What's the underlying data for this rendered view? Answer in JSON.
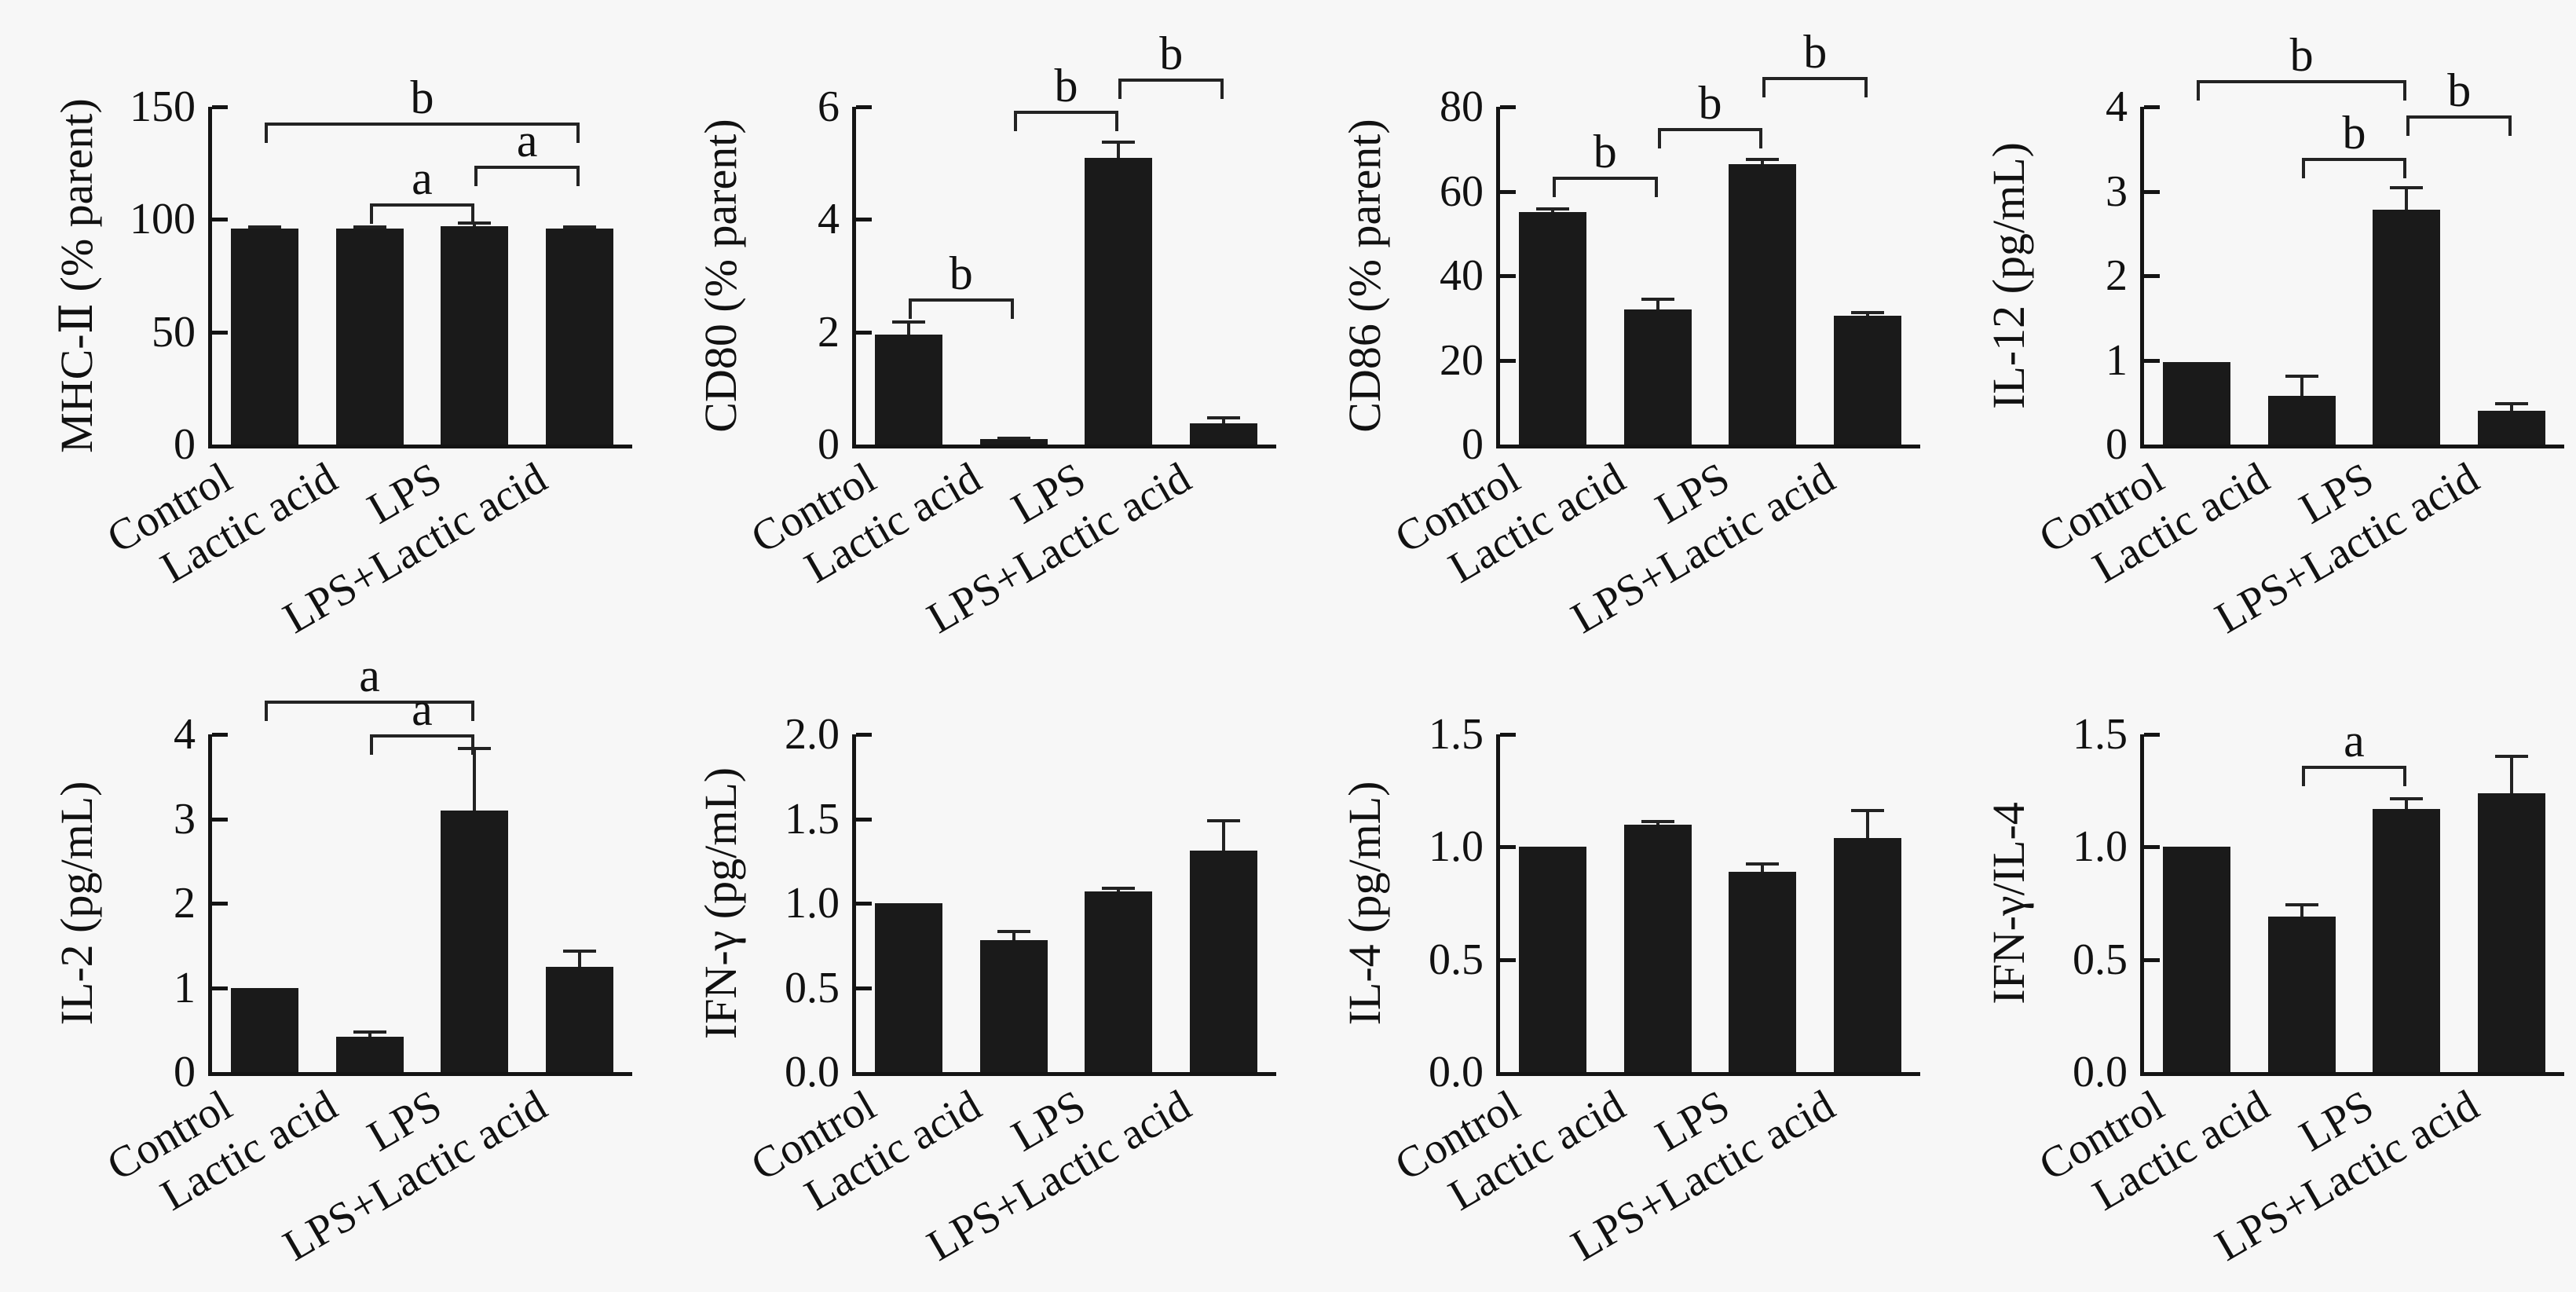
{
  "figure": {
    "background": "#f7f7f7",
    "bar_color": "#1a1a1a",
    "axis_color": "#141414",
    "categories": [
      "Control",
      "Lactic acid",
      "LPS",
      "LPS+Lactic acid"
    ]
  },
  "chart_data": [
    {
      "type": "bar",
      "name": "mhc-ii",
      "ylabel": "MHC-Ⅱ (% parent)",
      "categories": [
        "Control",
        "Lactic acid",
        "LPS",
        "LPS+Lactic acid"
      ],
      "values": [
        96,
        96,
        97,
        96
      ],
      "errors": [
        1.2,
        1.2,
        2.2,
        1.2
      ],
      "ylim": [
        0,
        150
      ],
      "yticks": [
        {
          "v": 0,
          "label": "0"
        },
        {
          "v": 50,
          "label": "50"
        },
        {
          "v": 100,
          "label": "100"
        },
        {
          "v": 150,
          "label": "150"
        }
      ],
      "brackets": [
        {
          "label": "b",
          "from": 0,
          "to": 3,
          "y": 143
        },
        {
          "label": "a",
          "from": 2,
          "to": 3,
          "y": 124
        },
        {
          "label": "a",
          "from": 1,
          "to": 2,
          "y": 107
        }
      ]
    },
    {
      "type": "bar",
      "name": "cd80",
      "ylabel": "CD80 (% parent)",
      "categories": [
        "Control",
        "Lactic acid",
        "LPS",
        "LPS+Lactic acid"
      ],
      "values": [
        1.95,
        0.1,
        5.1,
        0.38
      ],
      "errors": [
        0.25,
        0.04,
        0.3,
        0.12
      ],
      "ylim": [
        0,
        6
      ],
      "yticks": [
        {
          "v": 0,
          "label": "0"
        },
        {
          "v": 2,
          "label": "2"
        },
        {
          "v": 4,
          "label": "4"
        },
        {
          "v": 6,
          "label": "6"
        }
      ],
      "brackets": [
        {
          "label": "b",
          "from": 0,
          "to": 1,
          "y": 2.6
        },
        {
          "label": "b",
          "from": 1,
          "to": 2,
          "y": 5.93
        },
        {
          "label": "b",
          "from": 2,
          "to": 3,
          "y": 6.5
        }
      ]
    },
    {
      "type": "bar",
      "name": "cd86",
      "ylabel": "CD86 (% parent)",
      "categories": [
        "Control",
        "Lactic acid",
        "LPS",
        "LPS+Lactic acid"
      ],
      "values": [
        55,
        32,
        66.5,
        30.5
      ],
      "errors": [
        1.2,
        2.8,
        1.5,
        1.2
      ],
      "ylim": [
        0,
        80
      ],
      "yticks": [
        {
          "v": 0,
          "label": "0"
        },
        {
          "v": 20,
          "label": "20"
        },
        {
          "v": 40,
          "label": "40"
        },
        {
          "v": 60,
          "label": "60"
        },
        {
          "v": 80,
          "label": "80"
        }
      ],
      "brackets": [
        {
          "label": "b",
          "from": 0,
          "to": 1,
          "y": 63.5
        },
        {
          "label": "b",
          "from": 1,
          "to": 2,
          "y": 75
        },
        {
          "label": "b",
          "from": 2,
          "to": 3,
          "y": 87
        }
      ]
    },
    {
      "type": "bar",
      "name": "il-12",
      "ylabel": "IL-12 (pg/mL)",
      "categories": [
        "Control",
        "Lactic acid",
        "LPS",
        "LPS+Lactic acid"
      ],
      "values": [
        0.98,
        0.58,
        2.78,
        0.4
      ],
      "errors": [
        0,
        0.25,
        0.28,
        0.1
      ],
      "ylim": [
        0,
        4
      ],
      "yticks": [
        {
          "v": 0,
          "label": "0"
        },
        {
          "v": 1,
          "label": "1"
        },
        {
          "v": 2,
          "label": "2"
        },
        {
          "v": 3,
          "label": "3"
        },
        {
          "v": 4,
          "label": "4"
        }
      ],
      "brackets": [
        {
          "label": "b",
          "from": 0,
          "to": 2,
          "y": 4.32
        },
        {
          "label": "b",
          "from": 2,
          "to": 3,
          "y": 3.9
        },
        {
          "label": "b",
          "from": 1,
          "to": 2,
          "y": 3.4
        }
      ]
    },
    {
      "type": "bar",
      "name": "il-2",
      "ylabel": "IL-2 (pg/mL)",
      "categories": [
        "Control",
        "Lactic acid",
        "LPS",
        "LPS+Lactic acid"
      ],
      "values": [
        1.0,
        0.42,
        3.1,
        1.25
      ],
      "errors": [
        0,
        0.07,
        0.75,
        0.2
      ],
      "ylim": [
        0,
        4
      ],
      "yticks": [
        {
          "v": 0,
          "label": "0"
        },
        {
          "v": 1,
          "label": "1"
        },
        {
          "v": 2,
          "label": "2"
        },
        {
          "v": 3,
          "label": "3"
        },
        {
          "v": 4,
          "label": "4"
        }
      ],
      "brackets": [
        {
          "label": "a",
          "from": 0,
          "to": 2,
          "y": 4.4
        },
        {
          "label": "a",
          "from": 1,
          "to": 2,
          "y": 4.0
        }
      ]
    },
    {
      "type": "bar",
      "name": "ifn-gamma",
      "ylabel": "IFN-γ (pg/mL)",
      "categories": [
        "Control",
        "Lactic acid",
        "LPS",
        "LPS+Lactic acid"
      ],
      "values": [
        1.0,
        0.78,
        1.07,
        1.31
      ],
      "errors": [
        0,
        0.06,
        0.03,
        0.19
      ],
      "ylim": [
        0,
        2
      ],
      "yticks": [
        {
          "v": 0,
          "label": "0.0"
        },
        {
          "v": 0.5,
          "label": "0.5"
        },
        {
          "v": 1,
          "label": "1.0"
        },
        {
          "v": 1.5,
          "label": "1.5"
        },
        {
          "v": 2,
          "label": "2.0"
        }
      ],
      "brackets": []
    },
    {
      "type": "bar",
      "name": "il-4",
      "ylabel": "IL-4 (pg/mL)",
      "categories": [
        "Control",
        "Lactic acid",
        "LPS",
        "LPS+Lactic acid"
      ],
      "values": [
        1.0,
        1.1,
        0.89,
        1.04
      ],
      "errors": [
        0,
        0.02,
        0.04,
        0.13
      ],
      "ylim": [
        0,
        1.5
      ],
      "yticks": [
        {
          "v": 0,
          "label": "0.0"
        },
        {
          "v": 0.5,
          "label": "0.5"
        },
        {
          "v": 1,
          "label": "1.0"
        },
        {
          "v": 1.5,
          "label": "1.5"
        }
      ],
      "brackets": []
    },
    {
      "type": "bar",
      "name": "ifn-gamma-il-4-ratio",
      "ylabel": "IFN-γ/IL-4",
      "categories": [
        "Control",
        "Lactic acid",
        "LPS",
        "LPS+Lactic acid"
      ],
      "values": [
        1.0,
        0.69,
        1.17,
        1.24
      ],
      "errors": [
        0,
        0.06,
        0.05,
        0.17
      ],
      "ylim": [
        0,
        1.5
      ],
      "yticks": [
        {
          "v": 0,
          "label": "0.0"
        },
        {
          "v": 0.5,
          "label": "0.5"
        },
        {
          "v": 1,
          "label": "1.0"
        },
        {
          "v": 1.5,
          "label": "1.5"
        }
      ],
      "brackets": [
        {
          "label": "a",
          "from": 1,
          "to": 2,
          "y": 1.36
        }
      ]
    }
  ]
}
